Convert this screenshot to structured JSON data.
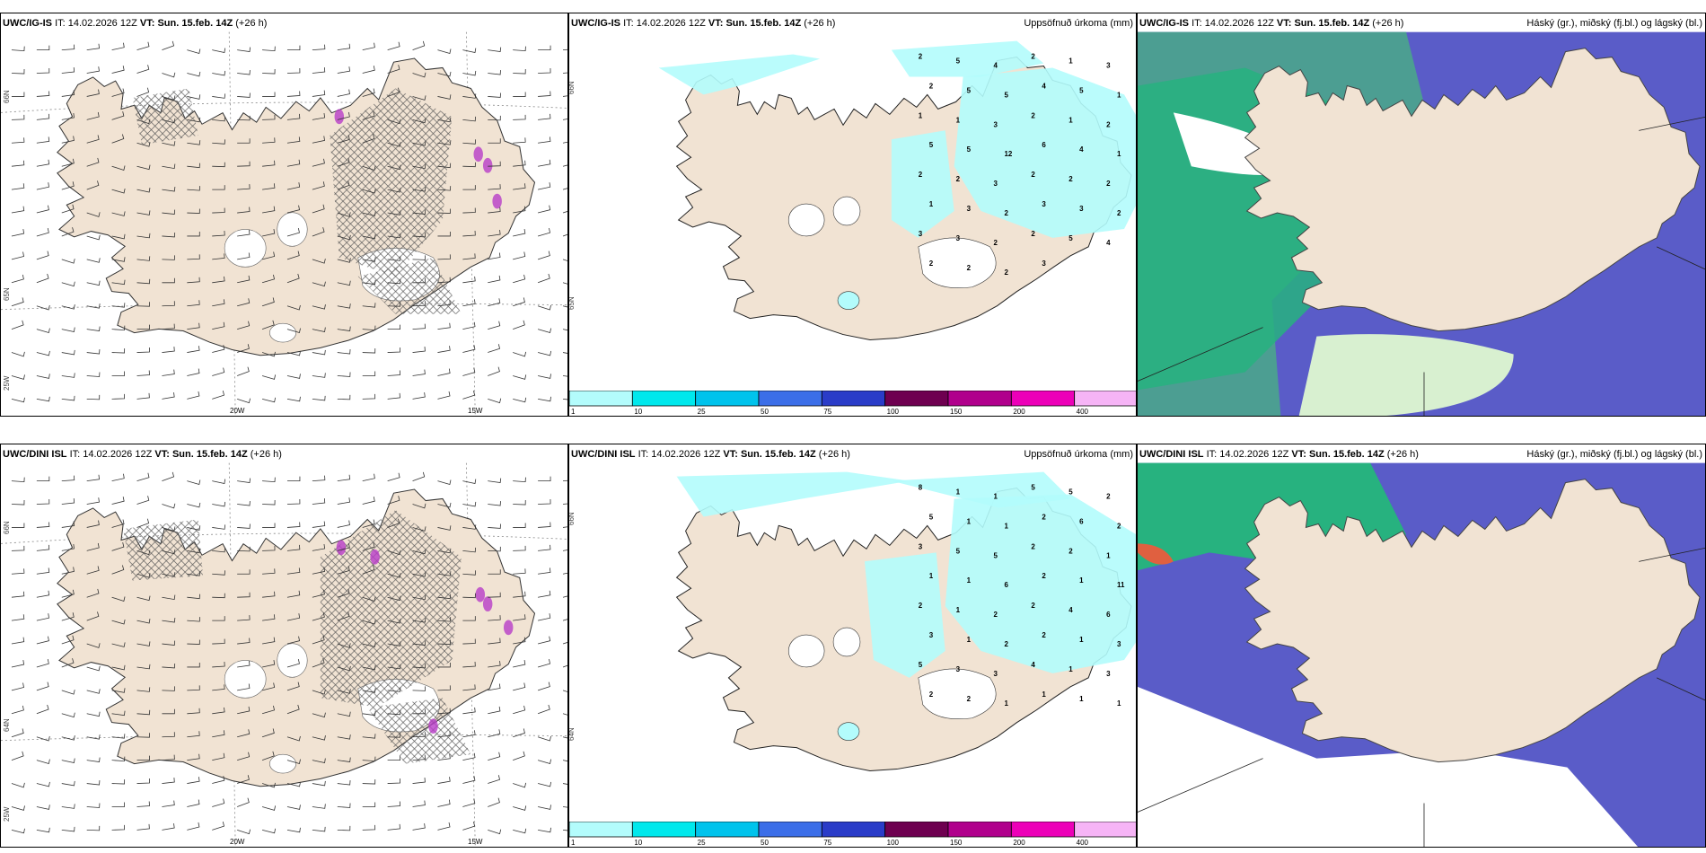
{
  "rows": [
    {
      "model": "UWC/IG-IS",
      "it_label": "IT:",
      "it_value": "14.02.2026 12Z",
      "vt_label": "VT:",
      "vt_value": "Sun. 15.feb. 14Z",
      "lead": "(+26 h)"
    },
    {
      "model": "UWC/DINI ISL",
      "it_label": "IT:",
      "it_value": "14.02.2026 12Z",
      "vt_label": "VT:",
      "vt_value": "Sun. 15.feb. 14Z",
      "lead": "(+26 h)"
    }
  ],
  "panels": {
    "precip_title": "Uppsöfnuð úrkoma (mm)",
    "cloud_title": "Háský (gr.), miðský (fj.bl.) og lágský (bl.)"
  },
  "axis_labels": {
    "lat66": "66N",
    "lat65": "65N",
    "lat64": "64N",
    "lon25": "25W",
    "lon20": "20W",
    "lon15": "15W"
  },
  "colorbar": {
    "ticks": [
      "1",
      "10",
      "25",
      "50",
      "75",
      "100",
      "150",
      "200",
      "400"
    ],
    "colors": [
      "#b3fcfc",
      "#00e8ec",
      "#00c3ec",
      "#3b6ee8",
      "#2a3cc8",
      "#6e0050",
      "#b0008c",
      "#ec00b8",
      "#f6b4f6"
    ]
  },
  "precip_numbers_top": [
    "2",
    "5",
    "4",
    "2",
    "1",
    "3",
    "2",
    "5",
    "5",
    "4",
    "5",
    "1",
    "1",
    "1",
    "3",
    "2",
    "1",
    "2",
    "5",
    "5",
    "12",
    "6",
    "4",
    "1",
    "2",
    "2",
    "3",
    "2",
    "2",
    "2",
    "1",
    "3",
    "2",
    "3",
    "3",
    "2",
    "3",
    "3",
    "2",
    "2",
    "5",
    "4",
    "2",
    "2",
    "2",
    "3"
  ],
  "precip_numbers_bottom": [
    "8",
    "1",
    "1",
    "5",
    "5",
    "2",
    "5",
    "1",
    "1",
    "2",
    "6",
    "2",
    "3",
    "5",
    "5",
    "2",
    "2",
    "1",
    "1",
    "1",
    "6",
    "2",
    "1",
    "11",
    "2",
    "1",
    "2",
    "2",
    "4",
    "6",
    "3",
    "1",
    "2",
    "2",
    "1",
    "3",
    "5",
    "3",
    "3",
    "4",
    "1",
    "3",
    "2",
    "2",
    "1",
    "1",
    "1",
    "1"
  ],
  "colors": {
    "land": "#f1e3d3",
    "land_dark": "#e6d0b8",
    "precip_light": "#b3fcfc",
    "cloud_blue": "#5a5cc8",
    "cloud_green": "#27b27f",
    "cloud_teal": "#4c9e92",
    "purple": "#b83cc8"
  }
}
